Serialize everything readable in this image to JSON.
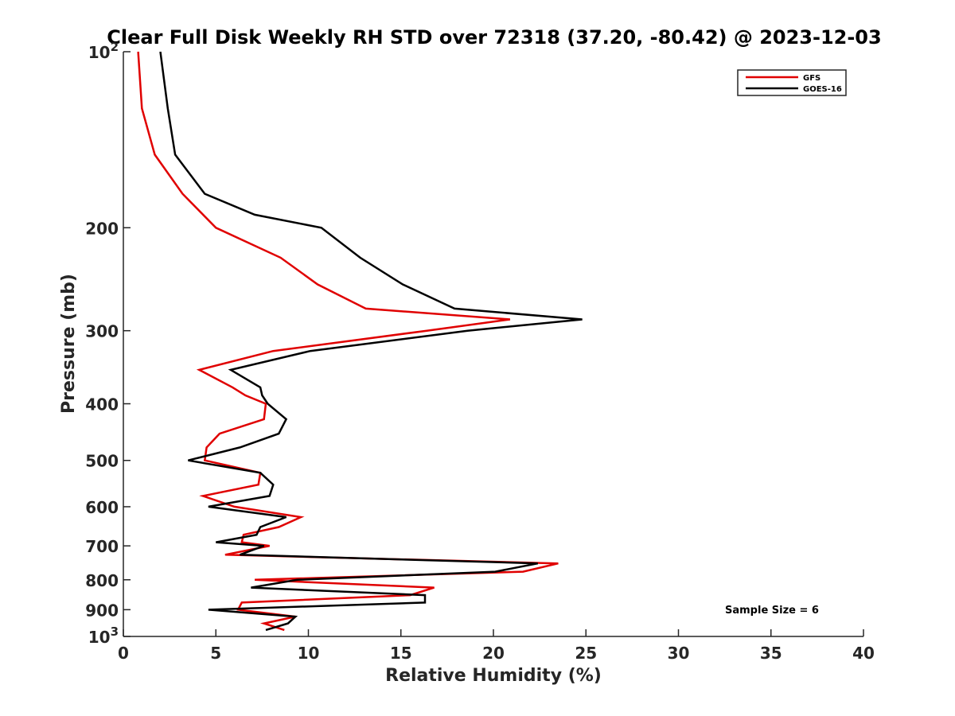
{
  "chart_data": {
    "type": "line",
    "title": "Clear Full Disk Weekly RH STD over 72318 (37.20, -80.42) @ 2023-12-03",
    "xlabel": "Relative Humidity (%)",
    "ylabel": "Pressure (mb)",
    "xlim": [
      0,
      40
    ],
    "ylim": [
      100,
      1000
    ],
    "y_scale": "log",
    "y_reversed": true,
    "grid": false,
    "legend_position": "top-right",
    "x_ticks": [
      0,
      5,
      10,
      15,
      20,
      25,
      30,
      35,
      40
    ],
    "x_tick_labels": [
      "0",
      "5",
      "10",
      "15",
      "20",
      "25",
      "30",
      "35",
      "40"
    ],
    "y_ticks": [
      100,
      200,
      300,
      400,
      500,
      600,
      700,
      800,
      900,
      1000
    ],
    "y_tick_labels": [
      {
        "base": "10",
        "exp": "2"
      },
      {
        "base": "200",
        "exp": ""
      },
      {
        "base": "300",
        "exp": ""
      },
      {
        "base": "400",
        "exp": ""
      },
      {
        "base": "500",
        "exp": ""
      },
      {
        "base": "600",
        "exp": ""
      },
      {
        "base": "700",
        "exp": ""
      },
      {
        "base": "800",
        "exp": ""
      },
      {
        "base": "900",
        "exp": ""
      },
      {
        "base": "10",
        "exp": "3"
      }
    ],
    "annotation": "Sample Size = 6",
    "series": [
      {
        "name": "GFS",
        "color": "#e00000",
        "points": [
          [
            0.8,
            100
          ],
          [
            1.0,
            125
          ],
          [
            1.7,
            150
          ],
          [
            3.2,
            175
          ],
          [
            5.0,
            200
          ],
          [
            8.5,
            225
          ],
          [
            10.5,
            250
          ],
          [
            13.1,
            275
          ],
          [
            20.9,
            287
          ],
          [
            16.4,
            300
          ],
          [
            8.1,
            325
          ],
          [
            4.1,
            350
          ],
          [
            5.9,
            375
          ],
          [
            6.6,
            387
          ],
          [
            7.7,
            400
          ],
          [
            7.6,
            425
          ],
          [
            5.2,
            450
          ],
          [
            4.5,
            475
          ],
          [
            4.4,
            500
          ],
          [
            7.4,
            525
          ],
          [
            7.3,
            550
          ],
          [
            4.3,
            575
          ],
          [
            6.0,
            600
          ],
          [
            9.6,
            625
          ],
          [
            8.4,
            650
          ],
          [
            6.5,
            670
          ],
          [
            6.4,
            690
          ],
          [
            7.9,
            700
          ],
          [
            5.5,
            725
          ],
          [
            23.5,
            750
          ],
          [
            21.6,
            775
          ],
          [
            7.1,
            800
          ],
          [
            16.8,
            825
          ],
          [
            15.5,
            850
          ],
          [
            6.4,
            875
          ],
          [
            6.2,
            900
          ],
          [
            9.3,
            925
          ],
          [
            7.6,
            950
          ],
          [
            8.7,
            975
          ]
        ]
      },
      {
        "name": "GOES-16",
        "color": "#000000",
        "points": [
          [
            2.0,
            100
          ],
          [
            2.4,
            125
          ],
          [
            2.8,
            150
          ],
          [
            4.4,
            175
          ],
          [
            7.1,
            190
          ],
          [
            10.7,
            200
          ],
          [
            12.8,
            225
          ],
          [
            15.1,
            250
          ],
          [
            17.9,
            275
          ],
          [
            24.8,
            287
          ],
          [
            18.6,
            300
          ],
          [
            10.1,
            325
          ],
          [
            5.8,
            350
          ],
          [
            7.4,
            375
          ],
          [
            7.5,
            387
          ],
          [
            7.8,
            400
          ],
          [
            8.8,
            425
          ],
          [
            8.4,
            450
          ],
          [
            6.3,
            475
          ],
          [
            3.5,
            500
          ],
          [
            7.4,
            525
          ],
          [
            8.1,
            550
          ],
          [
            7.9,
            575
          ],
          [
            4.6,
            600
          ],
          [
            8.8,
            625
          ],
          [
            7.4,
            650
          ],
          [
            7.2,
            670
          ],
          [
            5.0,
            690
          ],
          [
            7.6,
            700
          ],
          [
            6.3,
            725
          ],
          [
            22.4,
            750
          ],
          [
            20.1,
            775
          ],
          [
            9.4,
            800
          ],
          [
            6.9,
            825
          ],
          [
            16.3,
            850
          ],
          [
            16.3,
            875
          ],
          [
            4.6,
            900
          ],
          [
            9.3,
            925
          ],
          [
            8.9,
            950
          ],
          [
            7.7,
            975
          ]
        ]
      }
    ]
  }
}
